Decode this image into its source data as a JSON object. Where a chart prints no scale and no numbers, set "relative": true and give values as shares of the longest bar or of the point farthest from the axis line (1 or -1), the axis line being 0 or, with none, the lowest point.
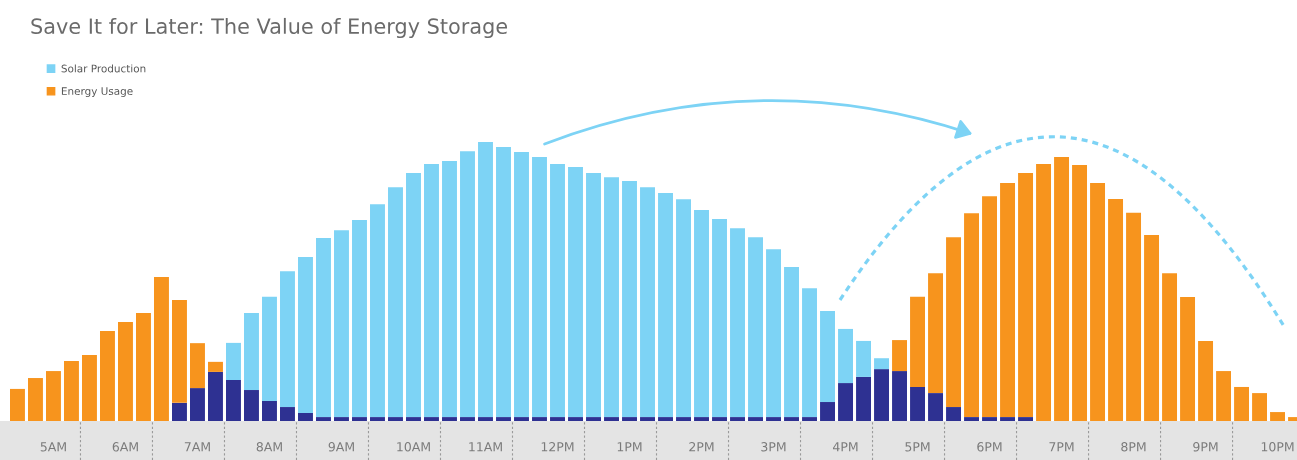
{
  "chart_data": {
    "type": "bar",
    "title": "Save It for Later: The Value of Energy Storage",
    "relative": true,
    "stacked": true,
    "legend": "top left",
    "tick_labels": "x",
    "categories": [
      null,
      null,
      "5AM",
      null,
      null,
      null,
      "6AM",
      null,
      null,
      null,
      "7AM",
      null,
      null,
      null,
      "8AM",
      null,
      null,
      null,
      "9AM",
      null,
      null,
      null,
      "10AM",
      null,
      null,
      null,
      "11AM",
      null,
      null,
      null,
      "12PM",
      null,
      null,
      null,
      "1PM",
      null,
      null,
      null,
      "2PM",
      null,
      null,
      null,
      "3PM",
      null,
      null,
      null,
      "4PM",
      null,
      null,
      null,
      "5PM",
      null,
      null,
      null,
      "6PM",
      null,
      null,
      null,
      "7PM",
      null,
      null,
      null,
      "8PM",
      null,
      null,
      null,
      "9PM",
      null,
      null,
      null,
      "10PM",
      null
    ],
    "series": [
      {
        "color": "#2e3192",
        "values": [
          null,
          null,
          null,
          null,
          null,
          null,
          null,
          null,
          null,
          0.065,
          0.118,
          0.176,
          0.147,
          0.111,
          0.072,
          0.05,
          0.029,
          0.014,
          0.014,
          0.014,
          0.014,
          0.014,
          0.014,
          0.014,
          0.014,
          0.014,
          0.014,
          0.014,
          0.014,
          0.014,
          0.014,
          0.014,
          0.014,
          0.014,
          0.014,
          0.014,
          0.014,
          0.014,
          0.014,
          0.014,
          0.014,
          0.014,
          0.014,
          0.014,
          0.014,
          0.068,
          0.136,
          0.158,
          0.186,
          0.179,
          0.122,
          0.1,
          0.05,
          0.014,
          0.014,
          0.014,
          0.014,
          null,
          null,
          null,
          null,
          null,
          null,
          null,
          null,
          null,
          null,
          null,
          null,
          null,
          null,
          null
        ]
      },
      {
        "name": "Solar Production",
        "color": "#7dd3f5",
        "values": [
          null,
          null,
          null,
          null,
          null,
          null,
          null,
          null,
          null,
          null,
          null,
          null,
          0.133,
          0.276,
          0.373,
          0.487,
          0.559,
          0.642,
          0.67,
          0.706,
          0.763,
          0.824,
          0.875,
          0.907,
          0.918,
          0.953,
          0.986,
          0.968,
          0.95,
          0.932,
          0.907,
          0.896,
          0.875,
          0.86,
          0.846,
          0.824,
          0.803,
          0.781,
          0.742,
          0.71,
          0.677,
          0.645,
          0.602,
          0.538,
          0.462,
          0.326,
          0.194,
          0.129,
          0.039,
          null,
          null,
          null,
          null,
          null,
          null,
          null,
          null,
          null,
          null,
          null,
          null,
          null,
          null,
          null,
          null,
          null,
          null,
          null,
          null,
          null,
          null,
          null
        ]
      },
      {
        "name": "Energy Usage",
        "color": "#f7941d",
        "values": [
          0.115,
          0.154,
          0.179,
          0.215,
          0.237,
          0.323,
          0.355,
          0.387,
          0.516,
          0.369,
          0.161,
          0.036,
          null,
          null,
          null,
          null,
          null,
          null,
          null,
          null,
          null,
          null,
          null,
          null,
          null,
          null,
          null,
          null,
          null,
          null,
          null,
          null,
          null,
          null,
          null,
          null,
          null,
          null,
          null,
          null,
          null,
          null,
          null,
          null,
          null,
          null,
          null,
          null,
          null,
          0.111,
          0.323,
          0.43,
          0.609,
          0.731,
          0.792,
          0.839,
          0.875,
          0.921,
          0.946,
          0.918,
          0.853,
          0.796,
          0.746,
          0.667,
          0.53,
          0.444,
          0.287,
          0.179,
          0.122,
          0.1,
          0.032,
          0.014
        ]
      }
    ]
  }
}
